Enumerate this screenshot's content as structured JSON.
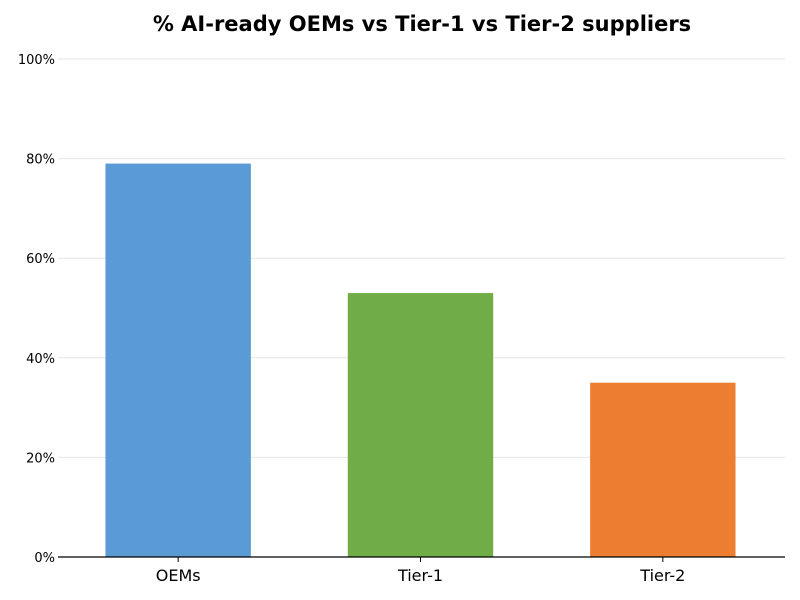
{
  "chart_data": {
    "type": "bar",
    "title": "% AI-ready OEMs vs Tier-1 vs Tier-2 suppliers",
    "xlabel": "",
    "ylabel": "",
    "categories": [
      "OEMs",
      "Tier-1",
      "Tier-2"
    ],
    "values": [
      79,
      53,
      35
    ],
    "colors": [
      "#5b9bd5",
      "#70ad47",
      "#ed7d31"
    ],
    "ylim": [
      0,
      100
    ],
    "yticks": [
      0,
      20,
      40,
      60,
      80,
      100
    ],
    "ytick_labels": [
      "0%",
      "20%",
      "40%",
      "60%",
      "80%",
      "100%"
    ],
    "grid": true,
    "legend": "none"
  }
}
